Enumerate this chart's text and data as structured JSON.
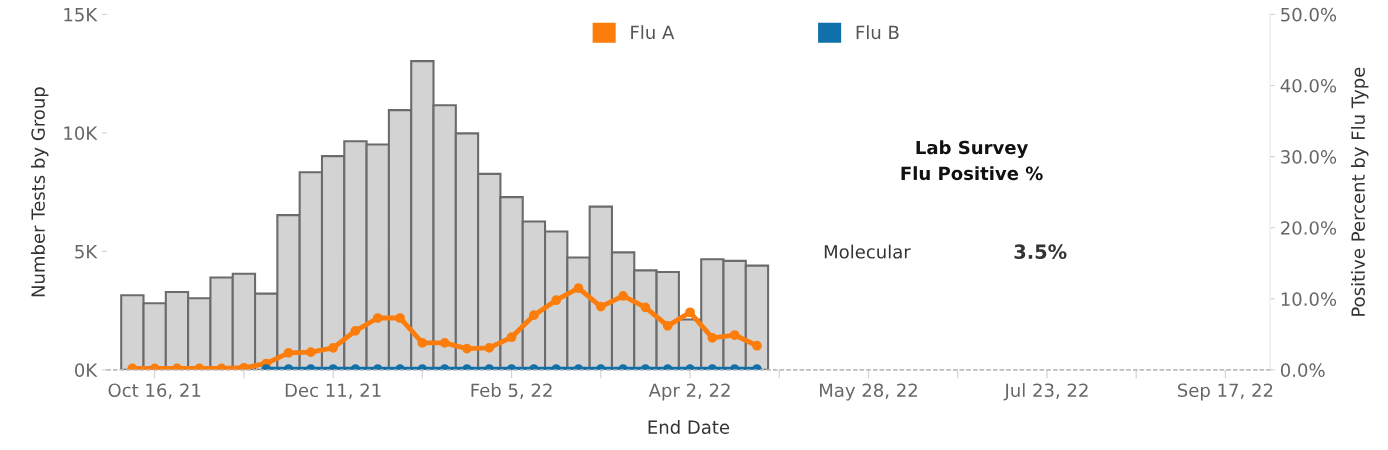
{
  "chart_data": {
    "type": "bar",
    "xlabel": "End Date",
    "ylabel": "Number Tests by Group",
    "y2label": "Positive Percent by Flu Type",
    "x": [
      "2021-10-09",
      "2021-10-16",
      "2021-10-23",
      "2021-10-30",
      "2021-11-06",
      "2021-11-13",
      "2021-11-20",
      "2021-11-27",
      "2021-12-04",
      "2021-12-11",
      "2021-12-18",
      "2021-12-25",
      "2022-01-01",
      "2022-01-08",
      "2022-01-15",
      "2022-01-22",
      "2022-01-29",
      "2022-02-05",
      "2022-02-12",
      "2022-02-19",
      "2022-02-26",
      "2022-03-05",
      "2022-03-12",
      "2022-03-19",
      "2022-03-26",
      "2022-04-02",
      "2022-04-09",
      "2022-04-16",
      "2022-04-23"
    ],
    "series": [
      {
        "color": "#d3d3d3",
        "values": [
          3150,
          2810,
          3290,
          3020,
          3900,
          4060,
          3220,
          6530,
          8340,
          9020,
          9650,
          9510,
          10960,
          13030,
          11170,
          9980,
          8270,
          7290,
          6260,
          5840,
          4740,
          6890,
          4960,
          4200,
          4130,
          2130,
          4670,
          4600,
          4400
        ]
      },
      {
        "type": "line",
        "name": "Flu A",
        "axis": "y2",
        "color": "#fc7d0b",
        "values": [
          0.2,
          0.2,
          0.2,
          0.2,
          0.2,
          0.3,
          0.9,
          2.4,
          2.5,
          3.1,
          5.5,
          7.3,
          7.3,
          3.8,
          3.8,
          3.0,
          3.1,
          4.6,
          7.7,
          9.8,
          11.5,
          8.9,
          10.4,
          8.8,
          6.2,
          8.1,
          4.5,
          4.9,
          3.4
        ]
      },
      {
        "type": "line",
        "name": "Flu B",
        "axis": "y2",
        "color": "#1170aa",
        "values": [
          null,
          null,
          null,
          null,
          null,
          null,
          0.1,
          0.1,
          0.1,
          0.1,
          0.1,
          0.1,
          0.1,
          0.1,
          0.1,
          0.1,
          0.1,
          0.1,
          0.1,
          0.1,
          0.1,
          0.1,
          0.1,
          0.1,
          0.1,
          0.1,
          0.1,
          0.1,
          0.1
        ]
      }
    ],
    "xlim": [
      "2021-10-01",
      "2022-10-01"
    ],
    "xticks": [
      {
        "value": "2021-10-16",
        "label": "Oct 16, 21"
      },
      {
        "value": "2021-11-13",
        "label": null
      },
      {
        "value": "2021-12-11",
        "label": "Dec 11, 21"
      },
      {
        "value": "2022-01-08",
        "label": null
      },
      {
        "value": "2022-02-05",
        "label": "Feb 5, 22"
      },
      {
        "value": "2022-03-05",
        "label": null
      },
      {
        "value": "2022-04-02",
        "label": "Apr 2, 22"
      },
      {
        "value": "2022-04-30",
        "label": null
      },
      {
        "value": "2022-05-28",
        "label": "May 28, 22"
      },
      {
        "value": "2022-06-25",
        "label": null
      },
      {
        "value": "2022-07-23",
        "label": "Jul 23, 22"
      },
      {
        "value": "2022-08-20",
        "label": null
      },
      {
        "value": "2022-09-17",
        "label": "Sep 17, 22"
      }
    ],
    "ylim": [
      0,
      15000
    ],
    "yticks": [
      {
        "value": 0,
        "label": "0K"
      },
      {
        "value": 5000,
        "label": "5K"
      },
      {
        "value": 10000,
        "label": "10K"
      },
      {
        "value": 15000,
        "label": "15K"
      }
    ],
    "y2lim": [
      0,
      50
    ],
    "y2ticks": [
      {
        "value": 0,
        "label": "0.0%"
      },
      {
        "value": 10,
        "label": "10.0%"
      },
      {
        "value": 20,
        "label": "20.0%"
      },
      {
        "value": 30,
        "label": "30.0%"
      },
      {
        "value": 40,
        "label": "40.0%"
      },
      {
        "value": 50,
        "label": "50.0%"
      }
    ],
    "marker": "circle",
    "line_style": "solid",
    "grid": false,
    "legend": "top",
    "annotations": [
      "Lab Survey\nFlu Positive %",
      "Molecular",
      "3.5%"
    ]
  }
}
